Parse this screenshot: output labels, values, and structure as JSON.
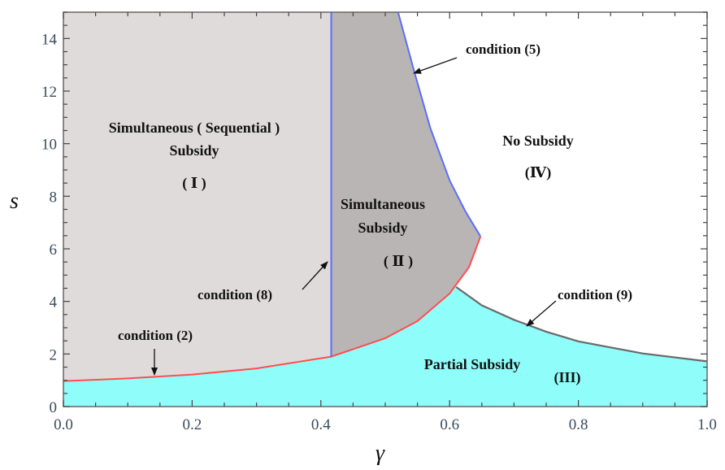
{
  "chart_data": {
    "type": "area",
    "xlabel": "γ",
    "ylabel": "s",
    "xlim": [
      0,
      1.0
    ],
    "ylim": [
      0,
      15
    ],
    "x_ticks": [
      "0.0",
      "0.2",
      "0.4",
      "0.6",
      "0.8",
      "1.0"
    ],
    "y_ticks": [
      "0",
      "2",
      "4",
      "6",
      "8",
      "10",
      "12",
      "14"
    ],
    "grid": false,
    "colors": {
      "region_I": "#e0dbdb",
      "region_II": "#b9b5b4",
      "region_III": "#8ffdf9",
      "region_IV": "#ffffff",
      "condition_2": "#ff4d4d",
      "condition_5": "#5b6cff",
      "condition_8": "#5b6cff",
      "condition_9": "#6a6a6a"
    },
    "boundaries": {
      "condition_2": [
        [
          0,
          0.97
        ],
        [
          0.1,
          1.07
        ],
        [
          0.2,
          1.22
        ],
        [
          0.3,
          1.45
        ],
        [
          0.416,
          1.9
        ],
        [
          0.5,
          2.6
        ],
        [
          0.55,
          3.25
        ],
        [
          0.6,
          4.3
        ],
        [
          0.63,
          5.3
        ],
        [
          0.648,
          6.47
        ]
      ],
      "condition_5": [
        [
          0.52,
          15
        ],
        [
          0.545,
          12.75
        ],
        [
          0.57,
          10.6
        ],
        [
          0.6,
          8.6
        ],
        [
          0.625,
          7.4
        ],
        [
          0.648,
          6.47
        ]
      ],
      "condition_8": [
        [
          0.416,
          1.9
        ],
        [
          0.416,
          15
        ]
      ],
      "condition_9": [
        [
          0.61,
          4.55
        ],
        [
          0.65,
          3.85
        ],
        [
          0.7,
          3.3
        ],
        [
          0.75,
          2.85
        ],
        [
          0.8,
          2.48
        ],
        [
          0.9,
          2.02
        ],
        [
          1.0,
          1.72
        ]
      ]
    },
    "annotations": {
      "condition_2": "condition (2)",
      "condition_5": "condition (5)",
      "condition_8": "condition (8)",
      "condition_9": "condition (9)"
    },
    "regions": {
      "I": {
        "line1": "Simultaneous ( Sequential )",
        "line2": "Subsidy",
        "numeral": "( Ⅰ )"
      },
      "II": {
        "line1": "Simultaneous",
        "line2": "Subsidy",
        "numeral": "( Ⅱ )"
      },
      "III": {
        "line1": "Partial Subsidy",
        "numeral": "(III)"
      },
      "IV": {
        "line1": "No Subsidy",
        "numeral": "(Ⅳ)"
      }
    }
  }
}
